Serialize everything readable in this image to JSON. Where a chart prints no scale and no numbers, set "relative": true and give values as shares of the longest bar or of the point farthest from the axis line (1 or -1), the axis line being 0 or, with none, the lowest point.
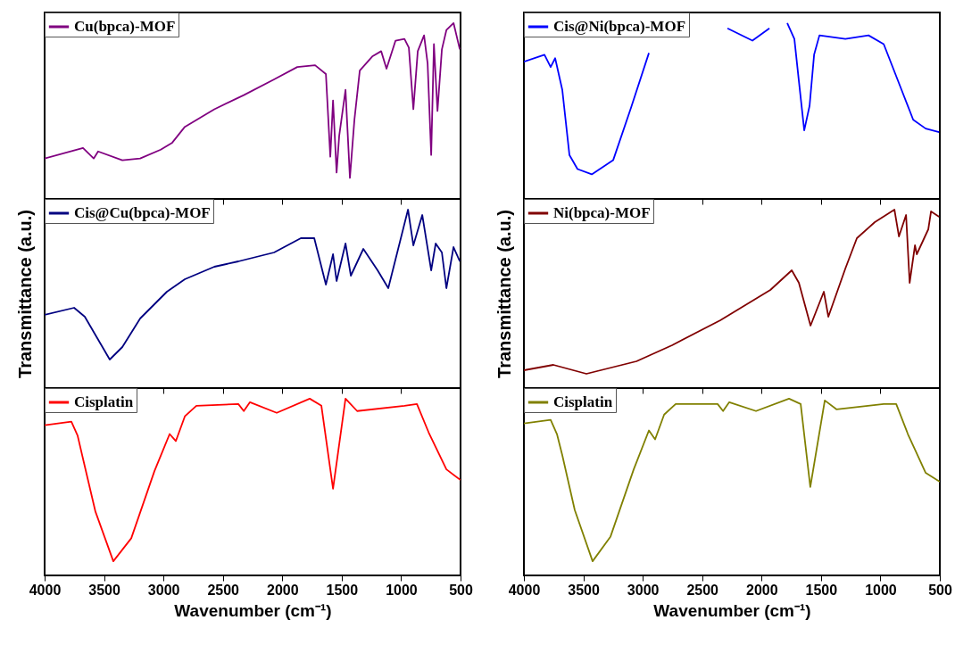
{
  "chart_data": [
    {
      "type": "line",
      "relative": true,
      "legend": "top left",
      "tick_labels": false,
      "xlim": [
        4000,
        500
      ],
      "xticks": [
        4000,
        3500,
        3000,
        2500,
        2000,
        1500,
        1000,
        500
      ],
      "x": [
        4000,
        3677,
        3587,
        3550,
        3346,
        3196,
        3023,
        2926,
        2820,
        2572,
        2324,
        2069,
        1874,
        1724,
        1633,
        1596,
        1573,
        1543,
        1521,
        1468,
        1431,
        1393,
        1348,
        1243,
        1168,
        1123,
        1047,
        972,
        935,
        897,
        860,
        807,
        777,
        747,
        724,
        694,
        657,
        619,
        559,
        506
      ],
      "series": [
        {
          "name": "Cu(bpca)-MOF",
          "color": "#800080",
          "values": [
            0.23,
            0.29,
            0.23,
            0.27,
            0.22,
            0.23,
            0.28,
            0.32,
            0.41,
            0.51,
            0.59,
            0.68,
            0.75,
            0.76,
            0.71,
            0.24,
            0.56,
            0.15,
            0.36,
            0.62,
            0.12,
            0.45,
            0.73,
            0.81,
            0.84,
            0.74,
            0.9,
            0.91,
            0.86,
            0.51,
            0.84,
            0.93,
            0.77,
            0.25,
            0.88,
            0.5,
            0.85,
            0.96,
            1,
            0.85
          ]
        }
      ]
    },
    {
      "type": "line",
      "relative": true,
      "legend": "top left",
      "tick_labels": false,
      "xlim": [
        4000,
        500
      ],
      "xticks": [
        4000,
        3500,
        3000,
        2500,
        2000,
        1500,
        1000,
        500
      ],
      "x": [
        4000,
        3827,
        3775,
        3737,
        3677,
        3617,
        3549,
        3429,
        3249,
        3098,
        2948,
        2780,
        2550,
        2287,
        2077,
        1934,
        1850,
        1784,
        1724,
        1686,
        1641,
        1596,
        1558,
        1513,
        1295,
        1100,
        972,
        822,
        724,
        619,
        506
      ],
      "series": [
        {
          "name": "Cis@Ni(bpca)-MOF",
          "color": "#0000ff",
          "values": [
            0.78,
            0.82,
            0.75,
            0.8,
            0.62,
            0.25,
            0.17,
            0.14,
            0.22,
            0.52,
            0.83,
            null,
            null,
            0.97,
            0.9,
            0.97,
            null,
            1,
            0.91,
            0.67,
            0.39,
            0.53,
            0.82,
            0.93,
            0.91,
            0.93,
            0.88,
            0.62,
            0.45,
            0.4,
            0.38
          ]
        }
      ]
    },
    {
      "type": "line",
      "relative": true,
      "legend": "top left",
      "tick_labels": false,
      "ylabel": "Transmittance (a.u.)",
      "xlim": [
        4000,
        500
      ],
      "xticks": [
        4000,
        3500,
        3000,
        2500,
        2000,
        1500,
        1000,
        500
      ],
      "x": [
        4000,
        3752,
        3662,
        3452,
        3346,
        3196,
        2971,
        2820,
        2572,
        2370,
        2069,
        1844,
        1731,
        1633,
        1573,
        1543,
        1468,
        1423,
        1318,
        1198,
        1108,
        942,
        897,
        822,
        747,
        709,
        657,
        619,
        559,
        506
      ],
      "series": [
        {
          "name": "Cis@Cu(bpca)-MOF",
          "color": "#000080",
          "values": [
            0.41,
            0.45,
            0.4,
            0.16,
            0.23,
            0.39,
            0.54,
            0.61,
            0.68,
            0.71,
            0.76,
            0.84,
            0.84,
            0.58,
            0.75,
            0.6,
            0.81,
            0.63,
            0.78,
            0.66,
            0.56,
            1,
            0.8,
            0.97,
            0.66,
            0.81,
            0.76,
            0.56,
            0.79,
            0.71
          ]
        }
      ]
    },
    {
      "type": "line",
      "relative": true,
      "legend": "top left",
      "tick_labels": false,
      "ylabel": "Transmittance (a.u.)",
      "xlim": [
        4000,
        500
      ],
      "xticks": [
        4000,
        3500,
        3000,
        2500,
        2000,
        1500,
        1000,
        500
      ],
      "x": [
        4000,
        3752,
        3474,
        3053,
        2753,
        2347,
        1926,
        1746,
        1686,
        1588,
        1476,
        1438,
        1295,
        1198,
        1047,
        882,
        844,
        784,
        754,
        709,
        694,
        597,
        574,
        506
      ],
      "series": [
        {
          "name": "Ni(bpca)-MOF",
          "color": "#800000",
          "values": [
            0.1,
            0.13,
            0.08,
            0.15,
            0.24,
            0.38,
            0.55,
            0.66,
            0.59,
            0.35,
            0.54,
            0.4,
            0.67,
            0.84,
            0.93,
            1,
            0.85,
            0.97,
            0.59,
            0.8,
            0.75,
            0.89,
            0.99,
            0.96
          ]
        }
      ]
    },
    {
      "type": "line",
      "relative": true,
      "legend": "top left",
      "tick_labels": "x",
      "xlabel": "Wavenumber (cm⁻¹)",
      "xlim": [
        4000,
        500
      ],
      "xticks": [
        4000,
        3500,
        3000,
        2500,
        2000,
        1500,
        1000,
        500
      ],
      "x": [
        4000,
        3775,
        3722,
        3677,
        3572,
        3422,
        3271,
        3076,
        2948,
        2896,
        2820,
        2723,
        2370,
        2324,
        2272,
        2047,
        1769,
        1671,
        1573,
        1468,
        1370,
        972,
        867,
        769,
        619,
        500
      ],
      "series": [
        {
          "name": "Cisplatin",
          "color": "#ff0000",
          "values": [
            0.85,
            0.87,
            0.79,
            0.66,
            0.36,
            0.08,
            0.21,
            0.59,
            0.8,
            0.76,
            0.9,
            0.96,
            0.97,
            0.93,
            0.98,
            0.92,
            1,
            0.96,
            0.49,
            1,
            0.93,
            0.96,
            0.97,
            0.81,
            0.6,
            0.54
          ]
        }
      ]
    },
    {
      "type": "line",
      "relative": true,
      "legend": "top left",
      "tick_labels": "x",
      "xlabel": "Wavenumber (cm⁻¹)",
      "xlim": [
        4000,
        500
      ],
      "xticks": [
        4000,
        3500,
        3000,
        2500,
        2000,
        1500,
        1000,
        500
      ],
      "x": [
        4000,
        3775,
        3722,
        3677,
        3572,
        3422,
        3271,
        3076,
        2948,
        2896,
        2820,
        2723,
        2370,
        2324,
        2272,
        2047,
        1769,
        1671,
        1590,
        1468,
        1370,
        972,
        867,
        769,
        619,
        500
      ],
      "series": [
        {
          "name": "Cisplatin",
          "color": "#808000",
          "values": [
            0.86,
            0.88,
            0.8,
            0.68,
            0.37,
            0.08,
            0.22,
            0.6,
            0.82,
            0.77,
            0.91,
            0.97,
            0.97,
            0.93,
            0.98,
            0.93,
            1,
            0.97,
            0.5,
            0.99,
            0.94,
            0.97,
            0.97,
            0.8,
            0.58,
            0.53
          ]
        }
      ]
    }
  ]
}
